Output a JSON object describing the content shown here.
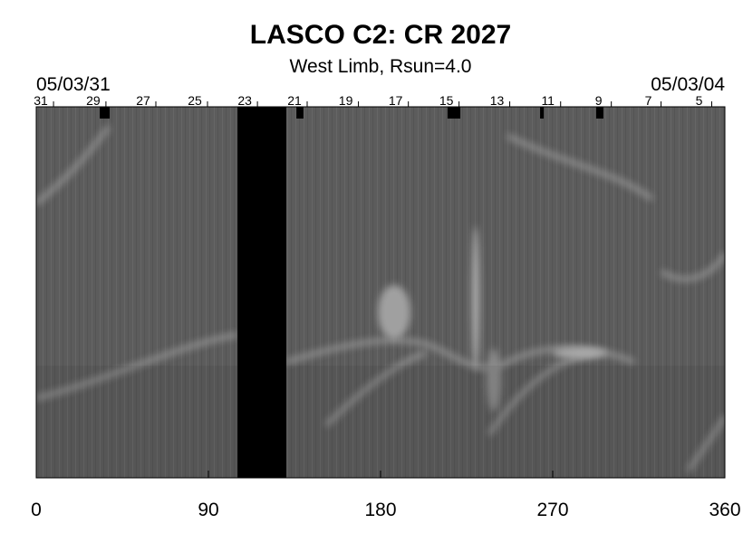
{
  "chart_data": {
    "type": "synoptic",
    "title": "LASCO C2: CR 2027",
    "subtitle": "West Limb, Rsun=4.0",
    "start_date": "05/03/31",
    "end_date": "05/03/04",
    "xlim": [
      0,
      360
    ],
    "xticks": [
      0,
      90,
      180,
      270,
      360
    ],
    "day_ticks": [
      {
        "value": 2.4,
        "label": "31"
      },
      {
        "value": 29.8,
        "label": "29"
      },
      {
        "value": 55.9,
        "label": "27"
      },
      {
        "value": 82.9,
        "label": "25"
      },
      {
        "value": 109,
        "label": "23"
      },
      {
        "value": 135,
        "label": "21"
      },
      {
        "value": 161.8,
        "label": "19"
      },
      {
        "value": 187.9,
        "label": "17"
      },
      {
        "value": 214.4,
        "label": "15"
      },
      {
        "value": 240.9,
        "label": "13"
      },
      {
        "value": 267.5,
        "label": "11"
      },
      {
        "value": 294,
        "label": "9"
      },
      {
        "value": 320,
        "label": "7"
      },
      {
        "value": 346.5,
        "label": "5"
      }
    ],
    "gap_band": [
      105.2,
      130.7
    ],
    "gap_marks": [
      [
        33.2,
        38.4
      ],
      [
        136,
        139.7
      ],
      [
        215,
        221.7
      ],
      [
        263.4,
        265.3
      ],
      [
        292.7,
        296.5
      ]
    ]
  }
}
